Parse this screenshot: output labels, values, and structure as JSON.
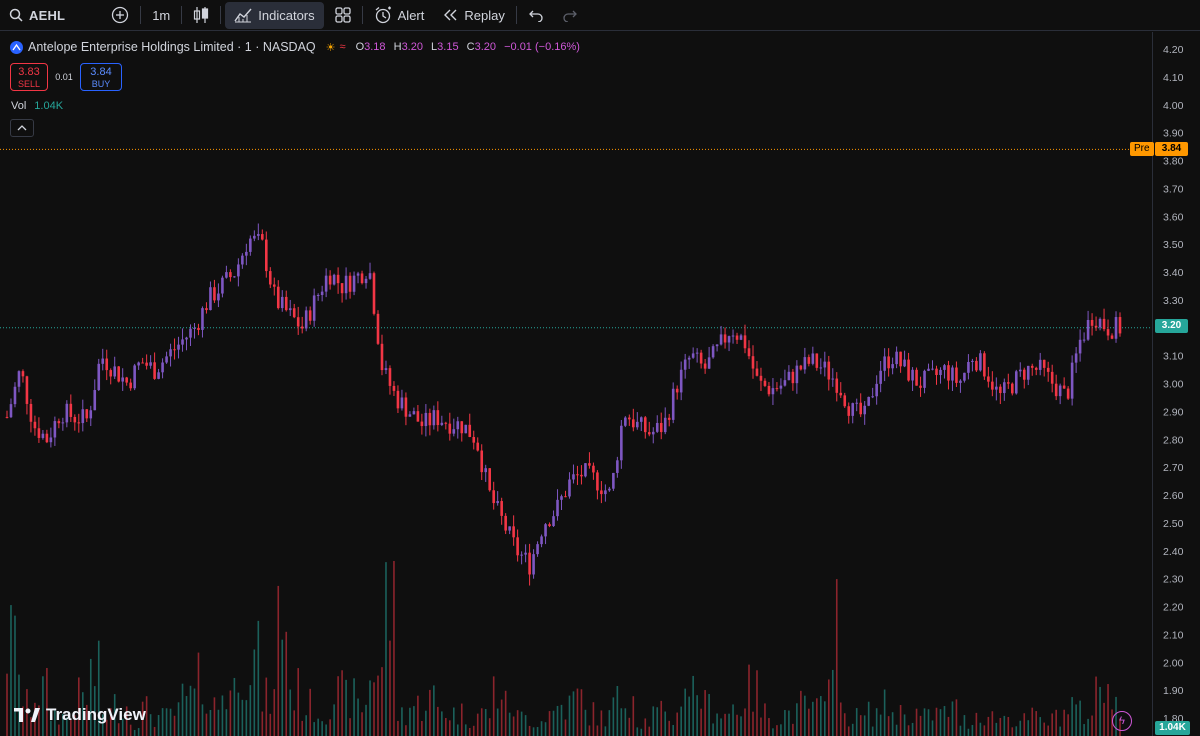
{
  "toolbar": {
    "symbol": "AEHL",
    "interval": "1m",
    "indicators_label": "Indicators",
    "alert_label": "Alert",
    "replay_label": "Replay"
  },
  "legend": {
    "title": "Antelope Enterprise Holdings Limited · 1 · NASDAQ",
    "open_key": "O",
    "open": "3.18",
    "high_key": "H",
    "high": "3.20",
    "low_key": "L",
    "low": "3.15",
    "close_key": "C",
    "close": "3.20",
    "change": "−0.01 (−0.16%)"
  },
  "trade": {
    "sell_price": "3.83",
    "sell_label": "SELL",
    "spread": "0.01",
    "buy_price": "3.84",
    "buy_label": "BUY"
  },
  "volume_legend": {
    "label": "Vol",
    "value": "1.04K"
  },
  "price_labels": {
    "pre_tag": "Pre",
    "pre_price": "3.84",
    "last_price": "3.20",
    "volume_value": "1.04K"
  },
  "branding": {
    "logo_text": "TradingView"
  },
  "colors": {
    "up": "#26a69a",
    "down": "#f23645",
    "wick_up": "#7e57c2",
    "pre": "#ff9800",
    "accent": "#2962ff"
  },
  "chart_data": {
    "type": "candlestick",
    "y_axis": {
      "min": 1.8,
      "max": 4.2,
      "ticks": [
        "4.20",
        "4.10",
        "4.00",
        "3.90",
        "3.80",
        "3.70",
        "3.60",
        "3.50",
        "3.40",
        "3.30",
        "3.20",
        "3.10",
        "3.00",
        "2.90",
        "2.80",
        "2.70",
        "2.60",
        "2.50",
        "2.40",
        "2.30",
        "2.20",
        "2.10",
        "2.00",
        "1.90",
        "1.80"
      ]
    },
    "pre_market_line": 3.84,
    "last_price_line": 3.2,
    "close_path": [
      2.88,
      3.05,
      2.85,
      2.8,
      2.9,
      2.88,
      2.87,
      3.1,
      3.05,
      3.0,
      3.08,
      3.05,
      3.1,
      3.15,
      3.2,
      3.3,
      3.35,
      3.4,
      3.52,
      3.5,
      3.3,
      3.25,
      3.2,
      3.3,
      3.4,
      3.35,
      3.38,
      3.42,
      3.05,
      2.95,
      2.9,
      2.85,
      2.88,
      2.86,
      2.85,
      2.8,
      2.6,
      2.5,
      2.4,
      2.35,
      2.5,
      2.55,
      2.65,
      2.68,
      2.65,
      2.6,
      2.9,
      2.85,
      2.82,
      2.85,
      3.0,
      3.1,
      3.05,
      3.12,
      3.2,
      3.15,
      3.0,
      2.98,
      3.0,
      3.05,
      3.08,
      3.05,
      3.0,
      2.9,
      2.88,
      3.05,
      3.1,
      3.05,
      3.0,
      3.02,
      3.05,
      3.0,
      3.1,
      3.05,
      2.95,
      3.0,
      3.05,
      3.05,
      3.0,
      2.95,
      3.15,
      3.25,
      3.2,
      3.2
    ],
    "volume_path": [
      120,
      40,
      60,
      30,
      25,
      50,
      80,
      30,
      40,
      20,
      35,
      25,
      30,
      50,
      70,
      40,
      60,
      110,
      100,
      50,
      160,
      60,
      40,
      30,
      55,
      50,
      40,
      90,
      180,
      30,
      40,
      50,
      35,
      30,
      25,
      30,
      60,
      40,
      25,
      20,
      30,
      40,
      50,
      30,
      25,
      45,
      60,
      20,
      30,
      25,
      70,
      60,
      40,
      30,
      40,
      60,
      30,
      25,
      30,
      40,
      35,
      180,
      30,
      25,
      30,
      40,
      30,
      30,
      25,
      30,
      35,
      20,
      30,
      25,
      25,
      20,
      25,
      20,
      30,
      40,
      30,
      60,
      80,
      20
    ]
  }
}
